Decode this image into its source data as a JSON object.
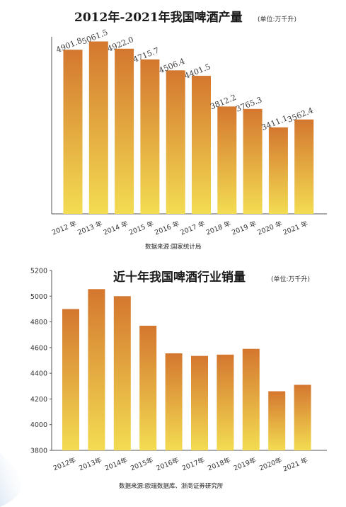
{
  "chart_data": [
    {
      "type": "bar",
      "title": "2012年-2021年我国啤酒产量",
      "unit": "(单位:万千升)",
      "source": "数据来源:国家统计局",
      "categories": [
        "2012 年",
        "2013 年",
        "2014 年",
        "2015 年",
        "2016 年",
        "2017 年",
        "2018 年",
        "2019 年",
        "2020 年",
        "2021 年"
      ],
      "values": [
        4901.8,
        5061.5,
        4922.0,
        4715.7,
        4506.4,
        4401.5,
        3812.2,
        3765.3,
        3411.1,
        3562.4
      ],
      "value_labels": [
        "4901.8",
        "5061.5",
        "4922.0",
        "4715.7",
        "4506.4",
        "4401.5",
        "3812.2",
        "3765.3",
        "3411.1",
        "3562.4"
      ],
      "ylim": [
        1750,
        5150
      ],
      "grid": false,
      "colors": {
        "bar_top": "#d4772f",
        "bar_bottom": "#f3dc52",
        "axis": "#555555"
      }
    },
    {
      "type": "bar",
      "title": "近十年我国啤酒行业销量",
      "unit": "(单位:万千升)",
      "source": "数据来源:欧瑞数据库、浙商证券研究所",
      "categories": [
        "2012年",
        "2013年",
        "2014年",
        "2015年",
        "2016年",
        "2017年",
        "2018年",
        "2019年",
        "2020年",
        "2021 年"
      ],
      "values": [
        4900,
        5055,
        5000,
        4770,
        4555,
        4535,
        4545,
        4590,
        4260,
        4310
      ],
      "ylim": [
        3800,
        5200
      ],
      "yticks": [
        "3800",
        "4000",
        "4200",
        "4400",
        "4600",
        "4800",
        "5000",
        "5200"
      ],
      "grid": false,
      "colors": {
        "bar_top": "#d4772f",
        "bar_bottom": "#f3dc52",
        "axis": "#555555"
      }
    }
  ]
}
